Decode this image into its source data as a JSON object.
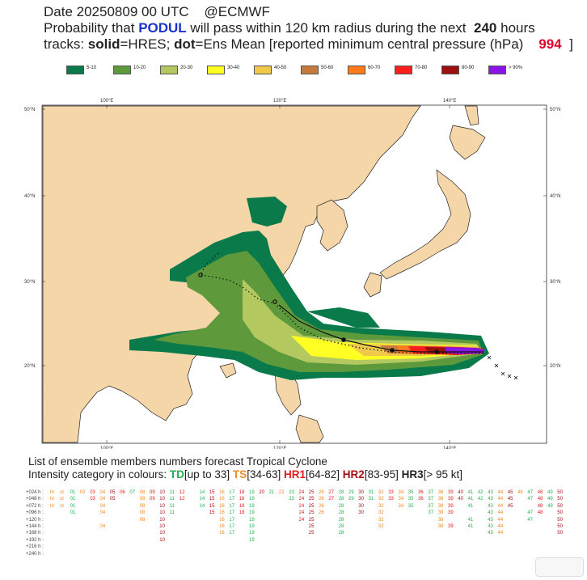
{
  "header": {
    "line1_date": "Date 20250809 00 UTC",
    "line1_source": "@ECMWF",
    "line2_prefix": "Probability that",
    "storm_name": "PODUL",
    "line2_mid": "will pass within 120 km radius during the next",
    "hours": "240",
    "line2_suffix": "hours",
    "line3_tracks": "tracks:",
    "solid": "solid",
    "line3_hres": "=HRES;",
    "dot": "dot",
    "line3_rest": "=Ens Mean [reported minimum central pressure (hPa)",
    "pressure": "994"
  },
  "legend": [
    {
      "label": "5-10",
      "color": "#0b7a4a"
    },
    {
      "label": "10-20",
      "color": "#5e9a3c"
    },
    {
      "label": "20-30",
      "color": "#b4c860"
    },
    {
      "label": "30-40",
      "color": "#ffff24"
    },
    {
      "label": "40-50",
      "color": "#f0c84a"
    },
    {
      "label": "50-60",
      "color": "#c87a3c"
    },
    {
      "label": "60-70",
      "color": "#ff7a1a"
    },
    {
      "label": "70-80",
      "color": "#ff1e1e"
    },
    {
      "label": "80-90",
      "color": "#9b0f0f"
    },
    {
      "label": "> 90%",
      "color": "#8a14e6"
    }
  ],
  "map": {
    "lon_labels": [
      "100°E",
      "120°E",
      "140°E"
    ],
    "lat_labels": [
      "50°N",
      "40°N",
      "30°N",
      "20°N"
    ],
    "colors": {
      "land": "#f5d6a8",
      "sea": "#ffffff",
      "coast": "#222222",
      "track_hres": "#111111"
    }
  },
  "footer": {
    "title": "List of ensemble members numbers forecast Tropical Cyclone",
    "intensity_prefix": "Intensity category in colours:",
    "td": "TD",
    "td_range": "[up to 33]",
    "ts": "TS",
    "ts_range": "[34-63]",
    "hr1": "HR1",
    "hr1_range": "[64-82]",
    "hr2": "HR2",
    "hr2_range": "[83-95]",
    "hr3": "HR3",
    "hr3_range": "[> 95 kt]",
    "rows": [
      {
        "label": "+024 h :",
        "cells": [
          "hr",
          "ct",
          "01",
          "02",
          "03",
          "04",
          "05",
          "06",
          "07",
          "08",
          "09",
          "10",
          "11",
          "12",
          "14",
          "15",
          "16",
          "17",
          "18",
          "19",
          "20",
          "21",
          "22",
          "23",
          "24",
          "25",
          "26",
          "27",
          "28",
          "29",
          "30",
          "31",
          "32",
          "33",
          "34",
          "35",
          "36",
          "37",
          "38",
          "39",
          "40",
          "41",
          "42",
          "43",
          "44",
          "45",
          "46",
          "47",
          "48",
          "49",
          "50"
        ]
      },
      {
        "label": "+048 h :",
        "cells": [
          "hr",
          "ct",
          "01",
          "03",
          "04",
          "05",
          "08",
          "09",
          "10",
          "11",
          "12",
          "14",
          "15",
          "16",
          "17",
          "18",
          "19",
          "23",
          "24",
          "25",
          "26",
          "27",
          "28",
          "29",
          "30",
          "31",
          "32",
          "33",
          "34",
          "35",
          "36",
          "37",
          "38",
          "39",
          "40",
          "41",
          "42",
          "43",
          "44",
          "45",
          "47",
          "48",
          "49",
          "50"
        ]
      },
      {
        "label": "+072 h :",
        "cells": [
          "hr",
          "ct",
          "01",
          "04",
          "08",
          "10",
          "11",
          "14",
          "15",
          "16",
          "17",
          "18",
          "19",
          "24",
          "25",
          "26",
          "28",
          "30",
          "32",
          "34",
          "35",
          "37",
          "38",
          "39",
          "41",
          "43",
          "44",
          "45",
          "48",
          "49",
          "50"
        ]
      },
      {
        "label": "+096 h :",
        "cells": [
          "01",
          "04",
          "08",
          "10",
          "11",
          "15",
          "16",
          "17",
          "18",
          "19",
          "24",
          "25",
          "26",
          "28",
          "30",
          "32",
          "37",
          "38",
          "39",
          "43",
          "44",
          "47",
          "48",
          "50"
        ]
      },
      {
        "label": "+120 h :",
        "cells": [
          "08",
          "10",
          "16",
          "17",
          "19",
          "24",
          "25",
          "28",
          "32",
          "38",
          "41",
          "43",
          "44",
          "47",
          "50"
        ]
      },
      {
        "label": "+144 h :",
        "cells": [
          "04",
          "10",
          "16",
          "17",
          "19",
          "25",
          "28",
          "32",
          "38",
          "39",
          "41",
          "43",
          "44",
          "50"
        ]
      },
      {
        "label": "+168 h :",
        "cells": [
          "10",
          "16",
          "17",
          "19",
          "25",
          "28",
          "43",
          "44",
          "50"
        ]
      },
      {
        "label": "+192 h :",
        "cells": [
          "10",
          "19"
        ]
      },
      {
        "label": "+216 h :",
        "cells": []
      },
      {
        "label": "+240 h :",
        "cells": []
      }
    ]
  }
}
